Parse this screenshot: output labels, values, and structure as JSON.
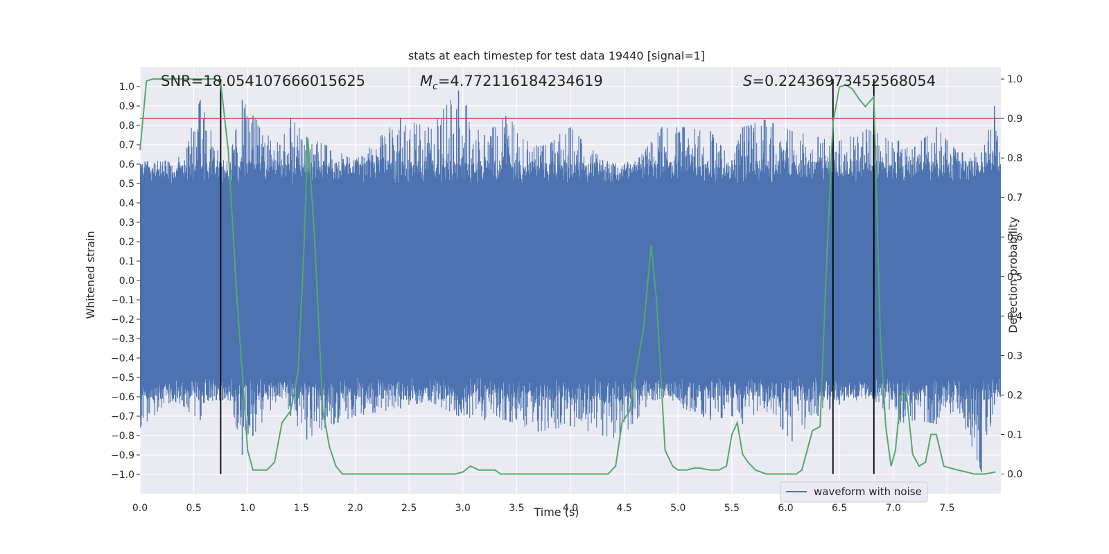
{
  "chart_data": {
    "type": "line",
    "title": "stats at each timestep for test data 19440 [signal=1]",
    "xlabel": "Time (s)",
    "ylabel_left": "Whitened strain",
    "ylabel_right": "Detection probability",
    "xlim": [
      0.0,
      8.0
    ],
    "ylim_left": [
      -1.1,
      1.1
    ],
    "ylim_right": [
      -0.05,
      1.03
    ],
    "x_ticks": [
      0.0,
      0.5,
      1.0,
      1.5,
      2.0,
      2.5,
      3.0,
      3.5,
      4.0,
      4.5,
      5.0,
      5.5,
      6.0,
      6.5,
      7.0,
      7.5
    ],
    "x_tick_labels": [
      "0.0",
      "0.5",
      "1.0",
      "1.5",
      "2.0",
      "2.5",
      "3.0",
      "3.5",
      "4.0",
      "4.5",
      "5.0",
      "5.5",
      "6.0",
      "6.5",
      "7.0",
      "7.5"
    ],
    "y_left_ticks": [
      1.0,
      0.9,
      0.8,
      0.7,
      0.6,
      0.5,
      0.4,
      0.3,
      0.2,
      0.1,
      0.0,
      -0.1,
      -0.2,
      -0.3,
      -0.4,
      -0.5,
      -0.6,
      -0.7,
      -0.8,
      -0.9,
      -1.0
    ],
    "y_left_tick_labels": [
      "1.0",
      "0.9",
      "0.8",
      "0.7",
      "0.6",
      "0.5",
      "0.4",
      "0.3",
      "0.2",
      "0.1",
      "0.0",
      "−0.1",
      "−0.2",
      "−0.3",
      "−0.4",
      "−0.5",
      "−0.6",
      "−0.7",
      "−0.8",
      "−0.9",
      "−1.0"
    ],
    "y_right_ticks": [
      1.0,
      0.9,
      0.8,
      0.7,
      0.6,
      0.5,
      0.4,
      0.3,
      0.2,
      0.1,
      0.0
    ],
    "y_right_tick_labels": [
      "1.0",
      "0.9",
      "0.8",
      "0.7",
      "0.6",
      "0.5",
      "0.4",
      "0.3",
      "0.2",
      "0.1",
      "0.0"
    ],
    "grid": true,
    "legend_position": "bottom-right",
    "annotations": [
      {
        "id": "snr",
        "text": "SNR=18.054107666015625"
      },
      {
        "id": "mc",
        "text": "=4.772116184234619",
        "symbol": "M",
        "subscript": "c"
      },
      {
        "id": "s",
        "text": "=0.22436973452568054",
        "symbol": "S"
      }
    ],
    "threshold": {
      "axis": "right",
      "value": 0.9,
      "color": "#c44e52"
    },
    "vertical_lines": [
      0.75,
      6.44,
      6.82
    ],
    "series": [
      {
        "name": "waveform with noise",
        "axis": "left",
        "color": "#4c72b0",
        "envelope_peaks": [
          [
            0.0,
            0.6,
            -0.76
          ],
          [
            0.3,
            0.55,
            -0.62
          ],
          [
            0.56,
            0.93,
            -0.72
          ],
          [
            0.8,
            0.55,
            -0.55
          ],
          [
            0.95,
            0.93,
            -0.9
          ],
          [
            1.05,
            0.85,
            -0.8
          ],
          [
            1.3,
            0.7,
            -0.6
          ],
          [
            1.4,
            0.84,
            -0.7
          ],
          [
            1.55,
            0.74,
            -0.82
          ],
          [
            1.72,
            0.7,
            -0.76
          ],
          [
            2.0,
            0.62,
            -0.7
          ],
          [
            2.42,
            0.84,
            -0.66
          ],
          [
            2.68,
            0.79,
            -0.62
          ],
          [
            2.96,
            0.98,
            -0.7
          ],
          [
            3.2,
            0.75,
            -0.72
          ],
          [
            3.4,
            0.85,
            -0.72
          ],
          [
            3.7,
            0.69,
            -0.78
          ],
          [
            4.0,
            0.79,
            -0.75
          ],
          [
            4.3,
            0.62,
            -0.8
          ],
          [
            4.46,
            0.5,
            -0.82
          ],
          [
            4.85,
            0.79,
            -0.56
          ],
          [
            5.05,
            0.79,
            -0.66
          ],
          [
            5.3,
            0.77,
            -0.72
          ],
          [
            5.5,
            0.62,
            -0.7
          ],
          [
            5.6,
            0.79,
            -0.74
          ],
          [
            5.8,
            0.83,
            -0.66
          ],
          [
            6.06,
            0.77,
            -0.83
          ],
          [
            6.3,
            0.74,
            -0.7
          ],
          [
            6.5,
            0.72,
            -0.64
          ],
          [
            6.75,
            0.78,
            -0.58
          ],
          [
            7.05,
            0.72,
            -0.74
          ],
          [
            7.2,
            0.69,
            -0.72
          ],
          [
            7.4,
            0.79,
            -0.74
          ],
          [
            7.6,
            0.66,
            -0.66
          ],
          [
            7.82,
            0.66,
            -0.99
          ],
          [
            7.94,
            0.9,
            -0.64
          ],
          [
            8.0,
            0.6,
            -0.6
          ]
        ],
        "core_band": [
          -0.35,
          0.37
        ],
        "inner_band": [
          -0.5,
          0.5
        ],
        "outer_band": [
          -0.62,
          0.62
        ]
      },
      {
        "name": "",
        "axis": "right",
        "color": "#55a868",
        "x": [
          0.0,
          0.06,
          0.12,
          0.2,
          0.3,
          0.4,
          0.5,
          0.6,
          0.7,
          0.75,
          0.82,
          0.9,
          1.0,
          1.05,
          1.1,
          1.18,
          1.25,
          1.32,
          1.4,
          1.47,
          1.52,
          1.56,
          1.62,
          1.7,
          1.76,
          1.82,
          1.88,
          1.95,
          2.0,
          2.2,
          2.4,
          2.6,
          2.8,
          2.93,
          3.0,
          3.07,
          3.15,
          3.3,
          3.35,
          3.45,
          3.55,
          3.7,
          4.0,
          4.2,
          4.35,
          4.42,
          4.48,
          4.55,
          4.68,
          4.75,
          4.8,
          4.88,
          4.95,
          5.0,
          5.08,
          5.15,
          5.2,
          5.3,
          5.38,
          5.45,
          5.5,
          5.55,
          5.6,
          5.65,
          5.72,
          5.82,
          6.0,
          6.1,
          6.15,
          6.25,
          6.32,
          6.38,
          6.44,
          6.5,
          6.56,
          6.62,
          6.68,
          6.74,
          6.82,
          6.88,
          6.93,
          6.98,
          7.02,
          7.07,
          7.12,
          7.18,
          7.24,
          7.3,
          7.35,
          7.4,
          7.47,
          7.53,
          7.6,
          7.68,
          7.75,
          7.85,
          7.95
        ],
        "y": [
          0.82,
          0.995,
          1.0,
          1.0,
          1.0,
          1.0,
          1.0,
          1.0,
          1.0,
          0.99,
          0.82,
          0.45,
          0.06,
          0.01,
          0.01,
          0.01,
          0.03,
          0.13,
          0.16,
          0.26,
          0.55,
          0.85,
          0.61,
          0.16,
          0.07,
          0.02,
          0.0,
          0.0,
          0.0,
          0.0,
          0.0,
          0.0,
          0.0,
          0.0,
          0.005,
          0.02,
          0.01,
          0.01,
          0.0,
          0.0,
          0.0,
          0.0,
          0.0,
          0.0,
          0.0,
          0.02,
          0.13,
          0.16,
          0.37,
          0.58,
          0.44,
          0.06,
          0.02,
          0.01,
          0.01,
          0.015,
          0.015,
          0.01,
          0.01,
          0.02,
          0.1,
          0.13,
          0.05,
          0.03,
          0.01,
          0.0,
          0.0,
          0.0,
          0.01,
          0.11,
          0.12,
          0.53,
          0.89,
          0.98,
          0.985,
          0.975,
          0.95,
          0.93,
          0.955,
          0.35,
          0.12,
          0.02,
          0.06,
          0.2,
          0.21,
          0.05,
          0.02,
          0.03,
          0.1,
          0.1,
          0.02,
          0.015,
          0.01,
          0.005,
          0.0,
          0.0,
          0.005
        ]
      }
    ]
  }
}
